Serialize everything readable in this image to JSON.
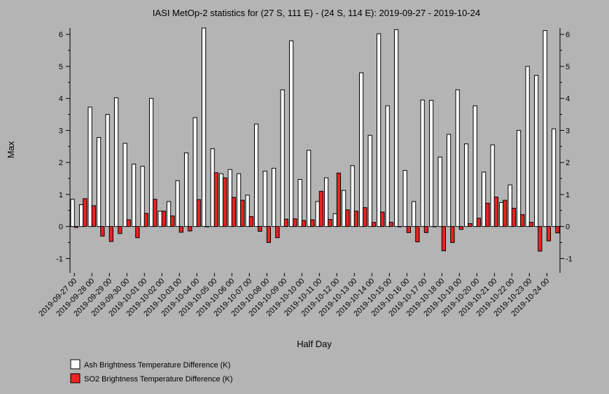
{
  "chart_data": {
    "type": "bar",
    "title": "IASI MetOp-2 statistics for (27 S, 111 E) - (24 S, 114 E): 2019-09-27 - 2019-10-24",
    "xlabel": "Half Day",
    "ylabel": "Max",
    "ylim": [
      -1.45,
      6.2
    ],
    "yticks": [
      -1,
      0,
      1,
      2,
      3,
      4,
      5,
      6
    ],
    "grid": false,
    "legend_position": "bottom-left",
    "x_tick_labels": [
      "2019-09-27 00",
      "2019-09-28 00",
      "2019-09-29 00",
      "2019-09-30 00",
      "2019-10-01 00",
      "2019-10-02 00",
      "2019-10-03 00",
      "2019-10-04 00",
      "2019-10-05 00",
      "2019-10-06 00",
      "2019-10-07 00",
      "2019-10-08 00",
      "2019-10-09 00",
      "2019-10-10 00",
      "2019-10-11 00",
      "2019-10-12 00",
      "2019-10-13 00",
      "2019-10-14 00",
      "2019-10-15 00",
      "2019-10-16 00",
      "2019-10-17 00",
      "2019-10-18 00",
      "2019-10-19 00",
      "2019-10-20 00",
      "2019-10-21 00",
      "2019-10-22 00",
      "2019-10-23 00",
      "2019-10-24 00"
    ],
    "series": [
      {
        "name": "Ash Brightness Temperature Difference (K)",
        "color": "#ffffff",
        "values": [
          0.85,
          0.68,
          3.73,
          2.78,
          3.5,
          4.02,
          2.6,
          1.95,
          1.88,
          4.0,
          0.48,
          0.78,
          1.43,
          2.3,
          3.4,
          6.2,
          2.43,
          1.65,
          1.78,
          1.65,
          0.98,
          3.2,
          1.73,
          1.82,
          4.27,
          5.8,
          1.47,
          2.38,
          0.78,
          1.52,
          0.4,
          1.13,
          1.9,
          4.8,
          2.85,
          6.02,
          3.77,
          6.15,
          1.75,
          0.78,
          3.95,
          3.94,
          2.17,
          2.88,
          4.27,
          2.58,
          3.77,
          1.7,
          2.55,
          0.75,
          1.3,
          3.0,
          5.0,
          4.72,
          6.12,
          3.05
        ]
      },
      {
        "name": "SO2 Brightness Temperature Difference (K)",
        "color": "#ee2222",
        "values": [
          -0.03,
          0.87,
          0.65,
          -0.3,
          -0.47,
          -0.22,
          0.21,
          -0.35,
          0.41,
          0.85,
          0.48,
          0.33,
          -0.18,
          -0.14,
          0.84,
          -0.01,
          1.68,
          1.52,
          0.91,
          0.82,
          0.31,
          -0.15,
          -0.5,
          -0.35,
          0.23,
          0.24,
          0.19,
          0.21,
          1.1,
          0.22,
          1.67,
          0.52,
          0.48,
          0.59,
          0.13,
          0.45,
          0.13,
          -0.01,
          -0.19,
          -0.48,
          -0.19,
          -0.01,
          -0.76,
          -0.5,
          -0.09,
          0.09,
          0.26,
          0.73,
          0.92,
          0.82,
          0.57,
          0.37,
          0.13,
          -0.77,
          -0.45,
          -0.2
        ]
      }
    ]
  }
}
